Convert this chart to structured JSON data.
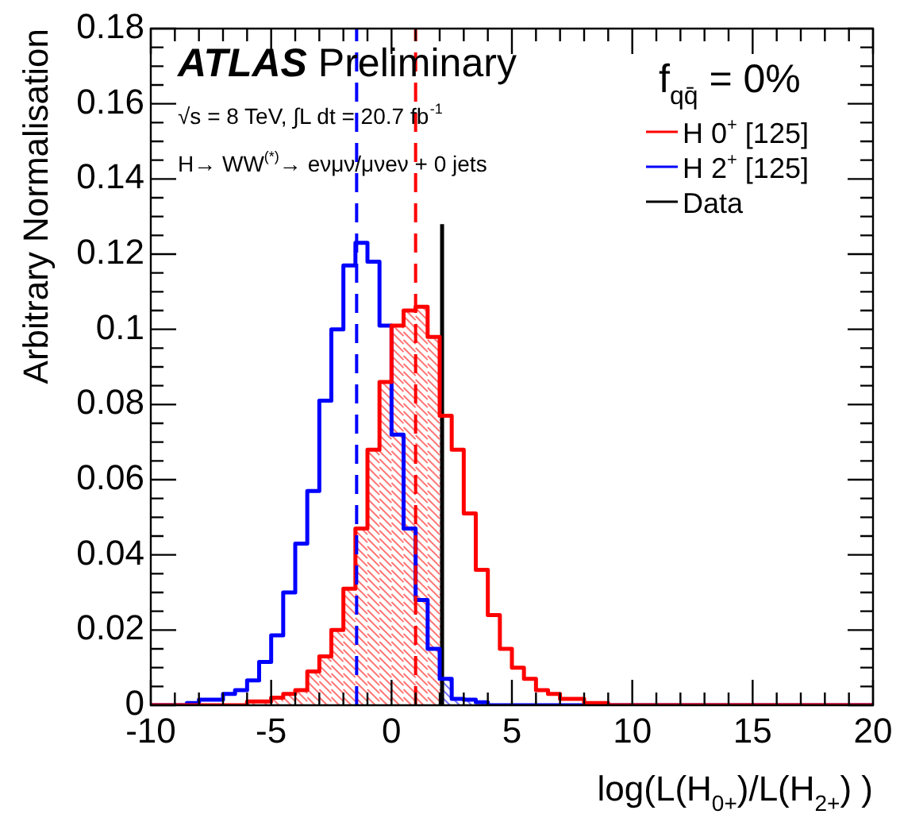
{
  "chart_data": {
    "type": "histogram",
    "title": "ATLAS Preliminary",
    "annotations": [
      "√s = 8 TeV, ∫L dt = 20.7 fb$^{-1}$",
      "H→ WW$^{(*)}$→ eνμν/μνeν + 0 jets"
    ],
    "legend_title": "f$_{qq̄}$ = 0%",
    "legend": "top right",
    "xlabel": "log(L(H$_{0+}$)/L(H$_{2+}$) )",
    "ylabel": "Arbitrary Normalisation",
    "bins": [
      -10,
      -9.5,
      -9,
      -8.5,
      -8,
      -7.5,
      -7,
      -6.5,
      -6,
      -5.5,
      -5,
      -4.5,
      -4,
      -3.5,
      -3,
      -2.5,
      -2,
      -1.5,
      -1,
      -0.5,
      0,
      0.5,
      1,
      1.5,
      2,
      2.5,
      3,
      3.5,
      4,
      4.5,
      5,
      5.5,
      6,
      6.5,
      7,
      7.5,
      8,
      8.5,
      9,
      9.5,
      10,
      10.5,
      11,
      11.5,
      12,
      12.5,
      13,
      13.5,
      14,
      14.5,
      15,
      15.5,
      16,
      16.5,
      17,
      17.5,
      18,
      18.5,
      19,
      19.5,
      20
    ],
    "series": [
      {
        "name": "H 0$^{+}$ [125]",
        "color": "#ff0000",
        "values": [
          0,
          0,
          0,
          0,
          0,
          0,
          0,
          0,
          0.001,
          0.001,
          0.002,
          0.003,
          0.004,
          0.009,
          0.013,
          0.02,
          0.031,
          0.047,
          0.068,
          0.086,
          0.101,
          0.105,
          0.106,
          0.098,
          0.077,
          0.068,
          0.051,
          0.036,
          0.024,
          0.015,
          0.01,
          0.007,
          0.004,
          0.003,
          0.0017,
          0.0017,
          0.0006,
          0.0006,
          0,
          0,
          0,
          0,
          0,
          0,
          0,
          0,
          0,
          0,
          0,
          0,
          0,
          0,
          0,
          0,
          0,
          0,
          0,
          0,
          0,
          0
        ]
      },
      {
        "name": "H 2$^{+}$ [125]",
        "color": "#0000ff",
        "values": [
          0,
          0,
          0,
          0.0006,
          0.0015,
          0.0015,
          0.003,
          0.004,
          0.0066,
          0.0115,
          0.0186,
          0.03,
          0.043,
          0.057,
          0.081,
          0.1,
          0.117,
          0.123,
          0.118,
          0.101,
          0.072,
          0.047,
          0.028,
          0.015,
          0.007,
          0.0017,
          0.0015,
          0.0008,
          0,
          0,
          0,
          0,
          0,
          0,
          0,
          0,
          0,
          0,
          0,
          0,
          0,
          0,
          0,
          0,
          0,
          0,
          0,
          0,
          0,
          0,
          0,
          0,
          0,
          0,
          0,
          0,
          0,
          0,
          0,
          0
        ]
      },
      {
        "name": "Data",
        "type": "line",
        "color": "#000000",
        "x": [
          2.1,
          2.1
        ],
        "values": [
          0,
          0.128
        ]
      }
    ],
    "ref_lines": [
      {
        "axis": "x",
        "value": -1.45,
        "color": "#0000ff",
        "line_style": "dashed"
      },
      {
        "axis": "x",
        "value": 1.0,
        "color": "#ff0000",
        "line_style": "dashed"
      }
    ],
    "xlim": [
      -10,
      20
    ],
    "ylim": [
      0,
      0.18
    ],
    "xticks": [
      -10,
      {
        "value": -9,
        "label": null
      },
      {
        "value": -8,
        "label": null
      },
      {
        "value": -7,
        "label": null
      },
      {
        "value": -6,
        "label": null
      },
      -5,
      {
        "value": -4,
        "label": null
      },
      {
        "value": -3,
        "label": null
      },
      {
        "value": -2,
        "label": null
      },
      {
        "value": -1,
        "label": null
      },
      0,
      {
        "value": 1,
        "label": null
      },
      {
        "value": 2,
        "label": null
      },
      {
        "value": 3,
        "label": null
      },
      {
        "value": 4,
        "label": null
      },
      5,
      {
        "value": 6,
        "label": null
      },
      {
        "value": 7,
        "label": null
      },
      {
        "value": 8,
        "label": null
      },
      {
        "value": 9,
        "label": null
      },
      10,
      {
        "value": 11,
        "label": null
      },
      {
        "value": 12,
        "label": null
      },
      {
        "value": 13,
        "label": null
      },
      {
        "value": 14,
        "label": null
      },
      15,
      {
        "value": 16,
        "label": null
      },
      {
        "value": 17,
        "label": null
      },
      {
        "value": 18,
        "label": null
      },
      {
        "value": 19,
        "label": null
      },
      20
    ],
    "yticks": [
      0,
      {
        "value": 0.005,
        "label": null
      },
      {
        "value": 0.01,
        "label": null
      },
      {
        "value": 0.015,
        "label": null
      },
      0.02,
      {
        "value": 0.025,
        "label": null
      },
      {
        "value": 0.03,
        "label": null
      },
      {
        "value": 0.035,
        "label": null
      },
      0.04,
      {
        "value": 0.045,
        "label": null
      },
      {
        "value": 0.05,
        "label": null
      },
      {
        "value": 0.055,
        "label": null
      },
      0.06,
      {
        "value": 0.065,
        "label": null
      },
      {
        "value": 0.07,
        "label": null
      },
      {
        "value": 0.075,
        "label": null
      },
      0.08,
      {
        "value": 0.085,
        "label": null
      },
      {
        "value": 0.09,
        "label": null
      },
      {
        "value": 0.095,
        "label": null
      },
      0.1,
      {
        "value": 0.105,
        "label": null
      },
      {
        "value": 0.11,
        "label": null
      },
      {
        "value": 0.115,
        "label": null
      },
      0.12,
      {
        "value": 0.125,
        "label": null
      },
      {
        "value": 0.13,
        "label": null
      },
      {
        "value": 0.135,
        "label": null
      },
      0.14,
      {
        "value": 0.145,
        "label": null
      },
      {
        "value": 0.15,
        "label": null
      },
      {
        "value": 0.155,
        "label": null
      },
      0.16,
      {
        "value": 0.165,
        "label": null
      },
      {
        "value": 0.17,
        "label": null
      },
      {
        "value": 0.175,
        "label": null
      },
      0.18
    ],
    "grid": false
  }
}
